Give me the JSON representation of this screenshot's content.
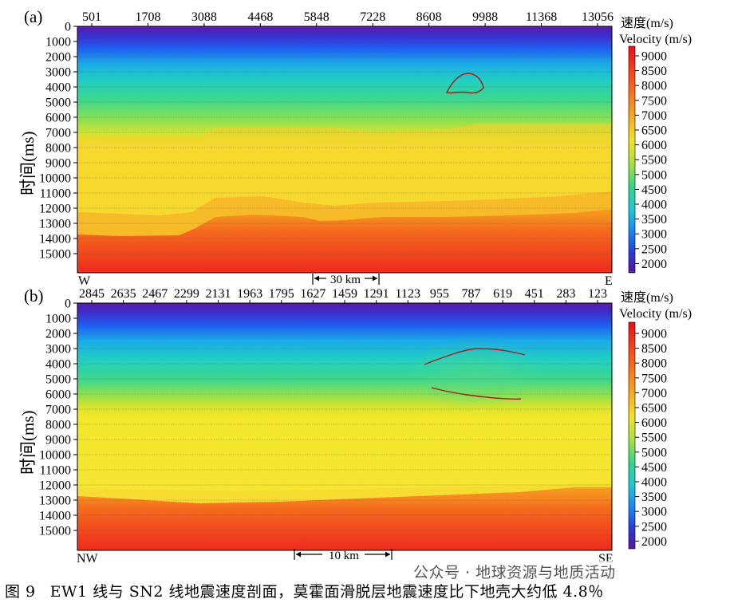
{
  "panels": [
    {
      "label": "(a)",
      "top_ticks": [
        "501",
        "1708",
        "3088",
        "4468",
        "5848",
        "7228",
        "8608",
        "9988",
        "11368",
        "13056"
      ],
      "left_label": "W",
      "right_label": "E",
      "scalebar_label": "30 km",
      "ylabel": "时间(ms)"
    },
    {
      "label": "(b)",
      "top_ticks": [
        "2845",
        "2635",
        "2467",
        "2299",
        "2131",
        "1963",
        "1795",
        "1627",
        "1459",
        "1291",
        "1123",
        "955",
        "787",
        "619",
        "451",
        "283",
        "123"
      ],
      "left_label": "NW",
      "right_label": "SE",
      "scalebar_label": "10 km",
      "ylabel": "时间(ms)"
    }
  ],
  "colorbar": {
    "title_cn": "速度(m/s)",
    "title_en": "Velocity (m/s)",
    "ticks": [
      "9000",
      "8500",
      "8000",
      "7500",
      "7000",
      "6500",
      "6000",
      "5500",
      "5000",
      "4500",
      "4000",
      "3500",
      "3000",
      "2500",
      "2000"
    ]
  },
  "caption": {
    "number": "图 9",
    "text": "EW1 线与 SN2 线地震速度剖面，莫霍面滑脱层地震速度比下地壳大约低 4.8％"
  },
  "watermark": "公众号 · 地球资源与地质活动",
  "chart_data": [
    {
      "type": "heatmap",
      "title": "",
      "ylabel": "时间(ms)",
      "y_ticks": [
        "0",
        "1000",
        "2000",
        "3000",
        "4000",
        "5000",
        "6000",
        "7000",
        "8000",
        "9000",
        "10000",
        "11000",
        "12000",
        "13000",
        "14000",
        "15000"
      ],
      "ylim": [
        0,
        16000
      ],
      "x_ticks": [
        "501",
        "1708",
        "3088",
        "4468",
        "5848",
        "7228",
        "8608",
        "9988",
        "11368",
        "13056"
      ],
      "colorbar_range_m_per_s": [
        1800,
        9400
      ],
      "annotation": "30 km",
      "ends": [
        "W",
        "E"
      ]
    },
    {
      "type": "heatmap",
      "title": "",
      "ylabel": "时间(ms)",
      "y_ticks": [
        "0",
        "1000",
        "2000",
        "3000",
        "4000",
        "5000",
        "6000",
        "7000",
        "8000",
        "9000",
        "10000",
        "11000",
        "12000",
        "13000",
        "14000",
        "15000"
      ],
      "ylim": [
        0,
        16000
      ],
      "x_ticks": [
        "2845",
        "2635",
        "2467",
        "2299",
        "2131",
        "1963",
        "1795",
        "1627",
        "1459",
        "1291",
        "1123",
        "955",
        "787",
        "619",
        "451",
        "283",
        "123"
      ],
      "colorbar_range_m_per_s": [
        1800,
        9400
      ],
      "annotation": "10 km",
      "ends": [
        "NW",
        "SE"
      ]
    }
  ]
}
